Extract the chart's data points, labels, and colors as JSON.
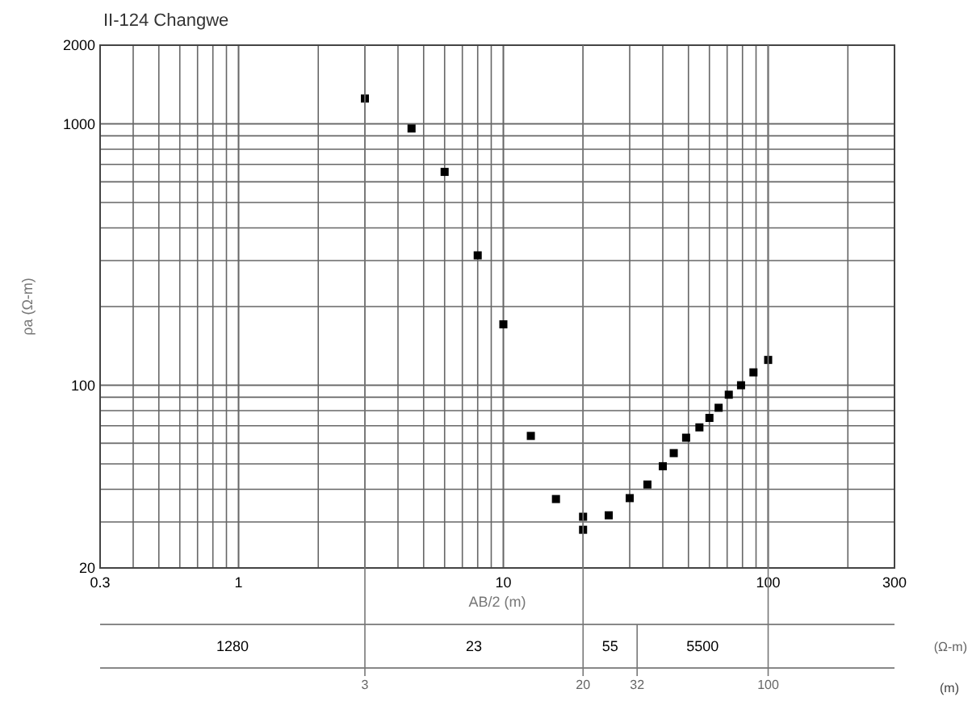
{
  "chart_data": {
    "type": "scatter",
    "title": "II-124 Changwe",
    "xlabel": "AB/2 (m)",
    "ylabel": "ρa (Ω-m)",
    "log": "xy",
    "grid": true,
    "marker": "square",
    "xlim": [
      0.3,
      300
    ],
    "xticks": [
      0.3,
      1,
      10,
      100,
      300
    ],
    "ylim": [
      20,
      2000
    ],
    "yticks": [
      20,
      100,
      1000,
      2000
    ],
    "series": [
      {
        "color": "#000000",
        "x": [
          3,
          4.5,
          6,
          8,
          10,
          12.7,
          15.8,
          20,
          20,
          25,
          30,
          35,
          40,
          44,
          49,
          55,
          60,
          65,
          71,
          79,
          88,
          100
        ],
        "values": [
          1250,
          960,
          655,
          314,
          171,
          64,
          36.7,
          31.4,
          28,
          31.8,
          37,
          41.7,
          49,
          55,
          63,
          69,
          75,
          82,
          92,
          100,
          112,
          125
        ]
      }
    ],
    "ref_lines": [
      {
        "axis": "x",
        "value": 3,
        "label": "3"
      },
      {
        "axis": "x",
        "value": 20,
        "label": "20"
      },
      {
        "axis": "x",
        "value": 32,
        "label": "32"
      },
      {
        "axis": "x",
        "value": 100,
        "label": "100"
      }
    ],
    "annotations": [
      "1280",
      "23",
      "55",
      "5500",
      "(Ω-m)",
      "(m)"
    ]
  }
}
